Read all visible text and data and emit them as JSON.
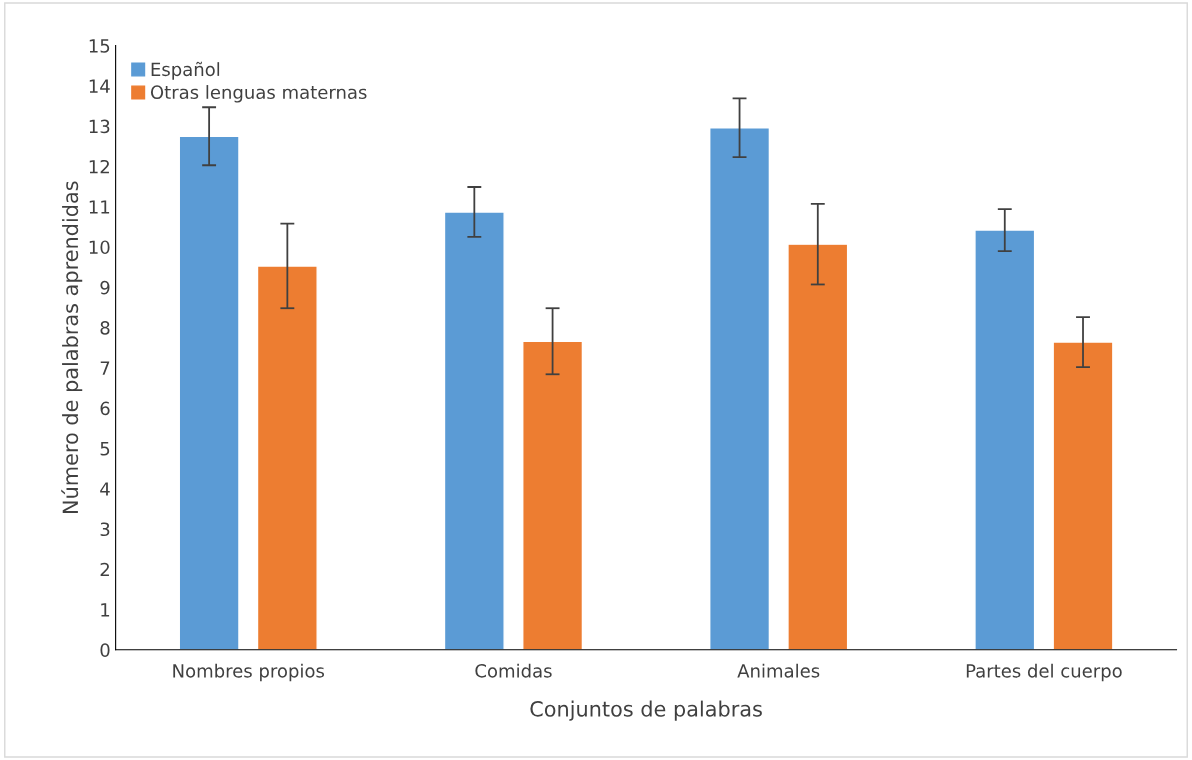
{
  "chart_data": {
    "type": "bar",
    "xlabel": "Conjuntos de palabras",
    "ylabel": "Número de palabras aprendidas",
    "categories": [
      "Nombres propios",
      "Comidas",
      "Animales",
      "Partes del cuerpo"
    ],
    "series": [
      {
        "name": "Español",
        "color": "#5b9bd5",
        "values": [
          12.75,
          10.87,
          12.96,
          10.42
        ],
        "errors": [
          0.72,
          0.62,
          0.73,
          0.52
        ]
      },
      {
        "name": "Otras lenguas maternas",
        "color": "#ed7d31",
        "values": [
          9.53,
          7.66,
          10.07,
          7.64
        ],
        "errors": [
          1.05,
          0.82,
          1.0,
          0.62
        ]
      }
    ],
    "ylim": [
      0,
      15
    ],
    "yticks": [
      0,
      1,
      2,
      3,
      4,
      5,
      6,
      7,
      8,
      9,
      10,
      11,
      12,
      13,
      14,
      15
    ],
    "grid": false,
    "legend": "top left"
  }
}
